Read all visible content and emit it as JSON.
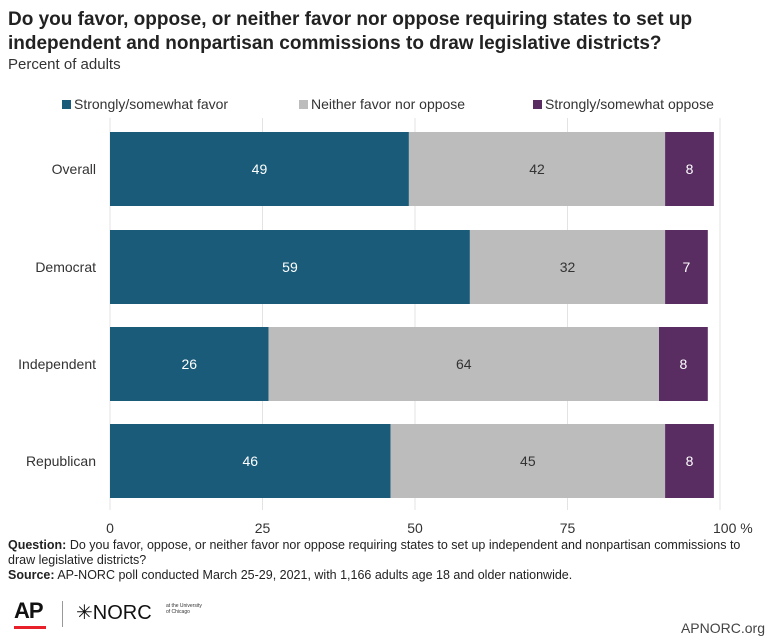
{
  "chart_data": {
    "type": "bar",
    "orientation": "horizontal",
    "stacked": true,
    "title": "Do you favor, oppose, or neither favor nor oppose requiring states to set up independent and nonpartisan commissions to draw legislative districts?",
    "subtitle": "Percent of adults",
    "categories": [
      "Overall",
      "Democrat",
      "Independent",
      "Republican"
    ],
    "series": [
      {
        "name": "Strongly/somewhat favor",
        "values": [
          49,
          59,
          26,
          46
        ],
        "color": "#1a5b7a"
      },
      {
        "name": "Neither favor nor oppose",
        "values": [
          42,
          32,
          64,
          45
        ],
        "color": "#bcbcbc"
      },
      {
        "name": "Strongly/somewhat oppose",
        "values": [
          8,
          7,
          8,
          8
        ],
        "color": "#5a2d62"
      }
    ],
    "xlim": [
      0,
      100
    ],
    "x_ticks": [
      "0",
      "25",
      "50",
      "75",
      "100 %"
    ],
    "legend_position": "top",
    "grid": true
  },
  "footnote": {
    "question_label": "Question:",
    "question_text": " Do you favor, oppose, or neither favor nor oppose requiring states to set up independent and nonpartisan commissions to draw legislative districts?",
    "source_label": "Source:",
    "source_text": " AP-NORC poll conducted March 25-29, 2021, with 1,166 adults age 18 and older nationwide."
  },
  "branding": {
    "ap_logo": "AP",
    "norc_logo": "✳NORC",
    "norc_sub": "at the University of Chicago",
    "site": "APNORC.org"
  }
}
